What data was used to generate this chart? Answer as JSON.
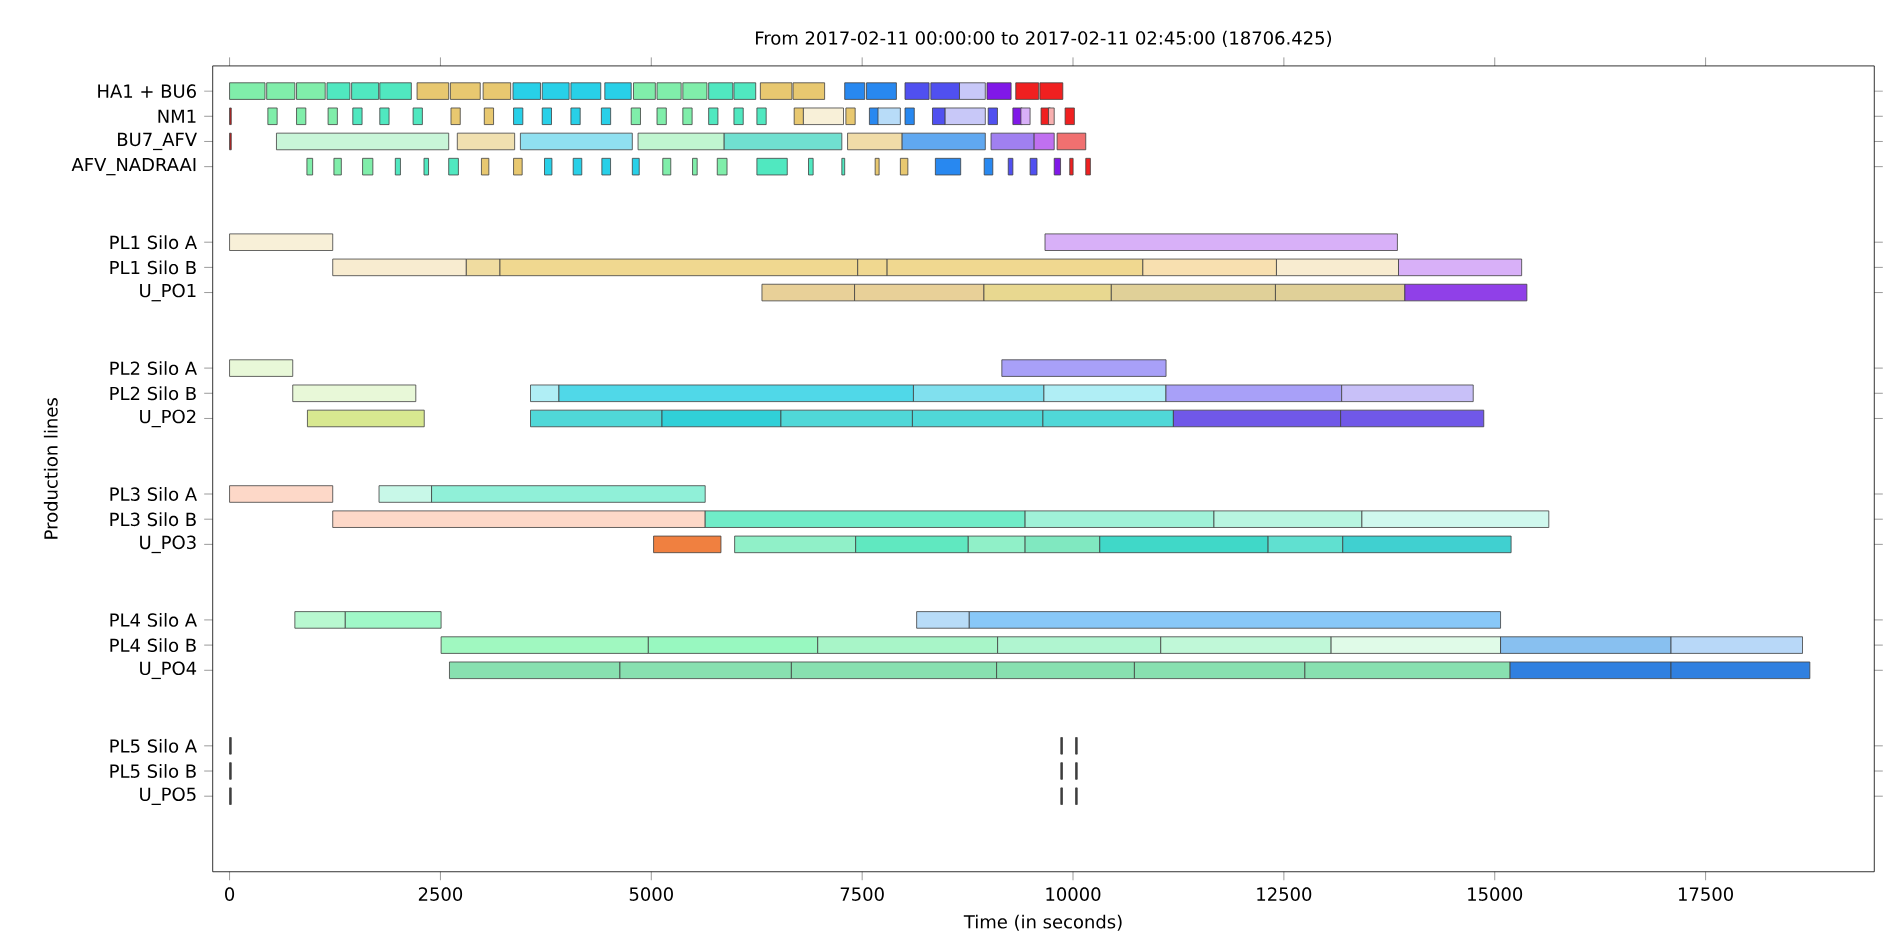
{
  "chart_data": {
    "type": "bar",
    "orientation": "horizontal",
    "title": "From 2017-02-11 00:00:00 to 2017-02-11 02:45:00 (18706.425)",
    "xlabel": "Time (in seconds)",
    "ylabel": "Production lines",
    "categories": [
      "HA1 + BU6",
      "NM1",
      "BU7_AFV",
      "AFV_NADRAAI",
      null,
      null,
      "PL1 Silo A",
      "PL1 Silo B",
      "U_PO1",
      null,
      null,
      "PL2 Silo A",
      "PL2 Silo B",
      "U_PO2",
      null,
      null,
      "PL3 Silo A",
      "PL3 Silo B",
      "U_PO3",
      null,
      null,
      "PL4 Silo A",
      "PL4 Silo B",
      "U_PO4",
      null,
      null,
      "PL5 Silo A",
      "PL5 Silo B",
      "U_PO5"
    ],
    "xlim": [
      -200,
      19500
    ],
    "xticks": [
      0,
      2500,
      5000,
      7500,
      10000,
      12500,
      15000,
      17500
    ],
    "series": [
      {
        "x": [
          "HA1 + BU6",
          "HA1 + BU6",
          "HA1 + BU6",
          "HA1 + BU6",
          "HA1 + BU6",
          "HA1 + BU6",
          "HA1 + BU6",
          "HA1 + BU6",
          "HA1 + BU6",
          "HA1 + BU6",
          "HA1 + BU6",
          "HA1 + BU6",
          "HA1 + BU6",
          "HA1 + BU6",
          "HA1 + BU6",
          "HA1 + BU6",
          "HA1 + BU6",
          "HA1 + BU6",
          "HA1 + BU6",
          "HA1 + BU6",
          "HA1 + BU6",
          "HA1 + BU6",
          "HA1 + BU6",
          "HA1 + BU6",
          "HA1 + BU6",
          "HA1 + BU6",
          "HA1 + BU6",
          "HA1 + BU6"
        ],
        "base": [
          0,
          440,
          794,
          1155,
          1447,
          1781,
          2223,
          2618,
          3006,
          3360,
          3707,
          4047,
          4449,
          4789,
          5068,
          5374,
          5680,
          5980,
          6293,
          6681,
          7293,
          7552,
          8008,
          8314,
          8654,
          8980,
          9321,
          9607
        ],
        "values": [
          420,
          334,
          340,
          272,
          320,
          374,
          375,
          354,
          327,
          326,
          319,
          354,
          313,
          259,
          286,
          286,
          286,
          258,
          374,
          374,
          238,
          354,
          286,
          340,
          306,
          286,
          272,
          272
        ],
        "colors": [
          "#80eeaa",
          "#80eeaa",
          "#80eeaa",
          "#50e8c0",
          "#50e8c0",
          "#50e8c0",
          "#e8c870",
          "#e8c870",
          "#e8c870",
          "#28d0e8",
          "#28d0e8",
          "#28d0e8",
          "#28d0e8",
          "#80eeaa",
          "#80eeaa",
          "#80eeaa",
          "#50e8c0",
          "#50e8c0",
          "#e8c870",
          "#e8c870",
          "#2888f0",
          "#2888f0",
          "#5050f0",
          "#5050f0",
          "#c8c8f8",
          "#8018e8",
          "#f02020",
          "#f02020"
        ]
      },
      {
        "x": [
          "NM1",
          "NM1",
          "NM1",
          "NM1",
          "NM1",
          "NM1",
          "NM1",
          "NM1",
          "NM1",
          "NM1",
          "NM1",
          "NM1",
          "NM1",
          "NM1",
          "NM1",
          "NM1",
          "NM1",
          "NM1",
          "NM1",
          "NM1",
          "NM1",
          "NM1",
          "NM1",
          "NM1",
          "NM1",
          "NM1",
          "NM1",
          "NM1",
          "NM1",
          "NM1",
          "NM1",
          "NM1",
          "NM1"
        ],
        "base": [
          0,
          454,
          794,
          1168,
          1461,
          1781,
          2176,
          2625,
          3020,
          3367,
          3707,
          4047,
          4408,
          4762,
          5068,
          5374,
          5680,
          5980,
          6252,
          6694,
          6803,
          7307,
          7586,
          7688,
          8008,
          8334,
          8484,
          8994,
          9287,
          9382,
          9621,
          9709,
          9906
        ],
        "values": [
          20,
          110,
          110,
          110,
          110,
          110,
          110,
          110,
          110,
          110,
          110,
          110,
          110,
          110,
          110,
          110,
          110,
          110,
          110,
          110,
          476,
          110,
          110,
          265,
          110,
          150,
          476,
          110,
          110,
          109,
          110,
          68,
          110
        ],
        "colors": [
          "#c02020",
          "#80eeaa",
          "#80eeaa",
          "#80eeaa",
          "#50e8c0",
          "#50e8c0",
          "#50e8c0",
          "#e8c870",
          "#e8c870",
          "#28d0e8",
          "#28d0e8",
          "#28d0e8",
          "#28d0e8",
          "#80eeaa",
          "#80eeaa",
          "#80eeaa",
          "#50e8c0",
          "#50e8c0",
          "#50e8c0",
          "#e8c870",
          "#f8f0d8",
          "#e8c870",
          "#2888f0",
          "#b8dcf8",
          "#2888f0",
          "#5050f0",
          "#c8c8f8",
          "#5050f0",
          "#8018e8",
          "#d8b0f8",
          "#f02020",
          "#f8b0b0",
          "#f02020"
        ]
      },
      {
        "x": [
          "BU7_AFV",
          "BU7_AFV",
          "BU7_AFV",
          "BU7_AFV",
          "BU7_AFV",
          "BU7_AFV",
          "BU7_AFV",
          "BU7_AFV",
          "BU7_AFV",
          "BU7_AFV",
          "BU7_AFV"
        ],
        "base": [
          0,
          556,
          2700,
          3448,
          4843,
          5864,
          7327,
          7974,
          9028,
          9539,
          9811
        ],
        "values": [
          20,
          2042,
          680,
          1327,
          1021,
          1395,
          647,
          986,
          511,
          238,
          340
        ],
        "colors": [
          "#c02020",
          "#c8f5d8",
          "#f0e0b0",
          "#90e0f0",
          "#c0f5d0",
          "#70e0d0",
          "#f0dca8",
          "#60a8f0",
          "#a080f0",
          "#c070f0",
          "#f07070"
        ]
      },
      {
        "x": [
          "AFV_NADRAAI",
          "AFV_NADRAAI",
          "AFV_NADRAAI",
          "AFV_NADRAAI",
          "AFV_NADRAAI",
          "AFV_NADRAAI",
          "AFV_NADRAAI",
          "AFV_NADRAAI",
          "AFV_NADRAAI",
          "AFV_NADRAAI",
          "AFV_NADRAAI",
          "AFV_NADRAAI",
          "AFV_NADRAAI",
          "AFV_NADRAAI",
          "AFV_NADRAAI",
          "AFV_NADRAAI",
          "AFV_NADRAAI",
          "AFV_NADRAAI",
          "AFV_NADRAAI",
          "AFV_NADRAAI",
          "AFV_NADRAAI",
          "AFV_NADRAAI",
          "AFV_NADRAAI",
          "AFV_NADRAAI",
          "AFV_NADRAAI",
          "AFV_NADRAAI",
          "AFV_NADRAAI"
        ],
        "base": [
          917,
          1237,
          1577,
          1965,
          2305,
          2598,
          2986,
          3367,
          3734,
          4074,
          4414,
          4775,
          5136,
          5489,
          5782,
          6252,
          6864,
          7259,
          7654,
          7953,
          8368,
          8947,
          9232,
          9491,
          9777,
          9961,
          10151
        ],
        "values": [
          68,
          88,
          122,
          61,
          54,
          115,
          88,
          102,
          88,
          102,
          103,
          82,
          95,
          55,
          116,
          360,
          55,
          34,
          47,
          89,
          300,
          102,
          55,
          82,
          75,
          40,
          55
        ],
        "colors": [
          "#80eeaa",
          "#80eeaa",
          "#80eeaa",
          "#50e8c0",
          "#50e8c0",
          "#50e8c0",
          "#e8c870",
          "#e8c870",
          "#28d0e8",
          "#28d0e8",
          "#28d0e8",
          "#28d0e8",
          "#80eeaa",
          "#80eeaa",
          "#80eeaa",
          "#50e8c0",
          "#50e8c0",
          "#50e8c0",
          "#e8c870",
          "#e8c870",
          "#2888f0",
          "#2888f0",
          "#5050f0",
          "#5050f0",
          "#8018e8",
          "#f02020",
          "#f02020"
        ]
      },
      {
        "x": [
          "PL1 Silo A",
          "PL1 Silo A"
        ],
        "base": [
          0,
          9668
        ],
        "values": [
          1223,
          4178
        ],
        "colors": [
          "#f8f0d8",
          "#d8b0f8"
        ]
      },
      {
        "x": [
          "PL1 Silo B",
          "PL1 Silo B",
          "PL1 Silo B",
          "PL1 Silo B",
          "PL1 Silo B",
          "PL1 Silo B",
          "PL1 Silo B",
          "PL1 Silo B"
        ],
        "base": [
          1223,
          2807,
          3206,
          7447,
          7796,
          10828,
          12412,
          13859
        ],
        "values": [
          1584,
          399,
          4241,
          349,
          3032,
          1584,
          1447,
          1460
        ],
        "colors": [
          "#f8ecd0",
          "#f0dca0",
          "#f0d890",
          "#f0d890",
          "#f0d890",
          "#f8e0b0",
          "#f8ecd0",
          "#d8b0f8"
        ]
      },
      {
        "x": [
          "U_PO1",
          "U_PO1",
          "U_PO1",
          "U_PO1",
          "U_PO1",
          "U_PO1"
        ],
        "base": [
          6312,
          7410,
          8944,
          10454,
          12400,
          13934
        ],
        "values": [
          1098,
          1534,
          1510,
          1946,
          1534,
          1447
        ],
        "colors": [
          "#e8d098",
          "#e8d098",
          "#e8d890",
          "#e0d098",
          "#e0d098",
          "#9040e8"
        ]
      },
      {
        "x": [
          "PL2 Silo A",
          "PL2 Silo A"
        ],
        "base": [
          0,
          9156
        ],
        "values": [
          749,
          1947
        ],
        "colors": [
          "#e8f8d8",
          "#a8a0f8"
        ]
      },
      {
        "x": [
          "PL2 Silo B",
          "PL2 Silo B",
          "PL2 Silo B",
          "PL2 Silo B",
          "PL2 Silo B",
          "PL2 Silo B",
          "PL2 Silo B"
        ],
        "base": [
          749,
          3568,
          3905,
          8108,
          9655,
          11102,
          13185
        ],
        "values": [
          1459,
          337,
          4203,
          1547,
          1447,
          2083,
          1560
        ],
        "colors": [
          "#e8f8d8",
          "#b0eef5",
          "#50d8e8",
          "#80e0ee",
          "#b0eef5",
          "#a8a0f8",
          "#c8c0f8"
        ]
      },
      {
        "x": [
          "U_PO2",
          "U_PO2",
          "U_PO2",
          "U_PO2",
          "U_PO2",
          "U_PO2",
          "U_PO2",
          "U_PO2"
        ],
        "base": [
          923,
          3568,
          5127,
          6537,
          8096,
          9643,
          11190,
          13173
        ],
        "values": [
          1385,
          1559,
          1410,
          1559,
          1547,
          1547,
          1983,
          1697
        ],
        "colors": [
          "#d8e890",
          "#50d8d8",
          "#30d0d8",
          "#50d8d8",
          "#50d8d8",
          "#50d8d8",
          "#7058e8",
          "#7058e8"
        ]
      },
      {
        "x": [
          "PL3 Silo A",
          "PL3 Silo A",
          "PL3 Silo A"
        ],
        "base": [
          0,
          1772,
          2395
        ],
        "values": [
          1223,
          623,
          3244
        ],
        "colors": [
          "#fdd8c8",
          "#c8f8e8",
          "#90f0d8"
        ]
      },
      {
        "x": [
          "PL3 Silo B",
          "PL3 Silo B",
          "PL3 Silo B",
          "PL3 Silo B",
          "PL3 Silo B"
        ],
        "base": [
          1223,
          5639,
          9432,
          11671,
          13425
        ],
        "values": [
          4416,
          3793,
          2239,
          1754,
          2216
        ],
        "colors": [
          "#fdd8c8",
          "#70ecc8",
          "#a0f2d8",
          "#b8f5e0",
          "#d0f8ee"
        ]
      },
      {
        "x": [
          "U_PO3",
          "U_PO3",
          "U_PO3",
          "U_PO3",
          "U_PO3",
          "U_PO3",
          "U_PO3",
          "U_PO3"
        ],
        "base": [
          5027,
          5988,
          7423,
          8758,
          9432,
          10317,
          12313,
          13198
        ],
        "values": [
          799,
          1435,
          1335,
          674,
          885,
          1996,
          885,
          1996
        ],
        "colors": [
          "#f08040",
          "#90f0c8",
          "#60e8c0",
          "#90f0c8",
          "#80e8c0",
          "#40d8c8",
          "#60e0d0",
          "#40d0d0"
        ]
      },
      {
        "x": [
          "PL4 Silo A",
          "PL4 Silo A",
          "PL4 Silo A",
          "PL4 Silo A"
        ],
        "base": [
          774,
          1372,
          8146,
          8770
        ],
        "values": [
          598,
          1136,
          624,
          6299
        ],
        "colors": [
          "#b8f8d0",
          "#a0f8c8",
          "#b8dcf8",
          "#88c8f8"
        ]
      },
      {
        "x": [
          "PL4 Silo B",
          "PL4 Silo B",
          "PL4 Silo B",
          "PL4 Silo B",
          "PL4 Silo B",
          "PL4 Silo B",
          "PL4 Silo B",
          "PL4 Silo B"
        ],
        "base": [
          2508,
          4965,
          6973,
          9106,
          11040,
          13060,
          15069,
          17090
        ],
        "values": [
          2457,
          2008,
          2133,
          1934,
          2020,
          2009,
          2021,
          1559
        ],
        "colors": [
          "#a0f8c0",
          "#98f8c0",
          "#a8f5c8",
          "#b0f5d0",
          "#c0f8d8",
          "#e0fbe8",
          "#88c0f0",
          "#b8d8f8"
        ]
      },
      {
        "x": [
          "U_PO4",
          "U_PO4",
          "U_PO4",
          "U_PO4",
          "U_PO4",
          "U_PO4",
          "U_PO4",
          "U_PO4"
        ],
        "base": [
          2607,
          4628,
          6661,
          9094,
          10728,
          12749,
          15182,
          17090
        ],
        "values": [
          2021,
          2033,
          2433,
          1634,
          2021,
          2433,
          1908,
          1646
        ],
        "colors": [
          "#88e0b0",
          "#88e0b0",
          "#88e0b0",
          "#88e0b0",
          "#88e0b0",
          "#88e0b0",
          "#3080e0",
          "#3080e0"
        ]
      },
      {
        "x": [
          "PL5 Silo A",
          "PL5 Silo A",
          "PL5 Silo A"
        ],
        "base": [
          0,
          9855,
          10030
        ],
        "values": [
          20,
          20,
          20
        ],
        "colors": [
          "#404040",
          "#404040",
          "#404040"
        ]
      },
      {
        "x": [
          "PL5 Silo B",
          "PL5 Silo B",
          "PL5 Silo B"
        ],
        "base": [
          0,
          9855,
          10030
        ],
        "values": [
          20,
          20,
          20
        ],
        "colors": [
          "#404040",
          "#404040",
          "#404040"
        ]
      },
      {
        "x": [
          "U_PO5",
          "U_PO5",
          "U_PO5"
        ],
        "base": [
          0,
          9855,
          10030
        ],
        "values": [
          20,
          20,
          20
        ],
        "colors": [
          "#404040",
          "#404040",
          "#404040"
        ]
      }
    ]
  }
}
